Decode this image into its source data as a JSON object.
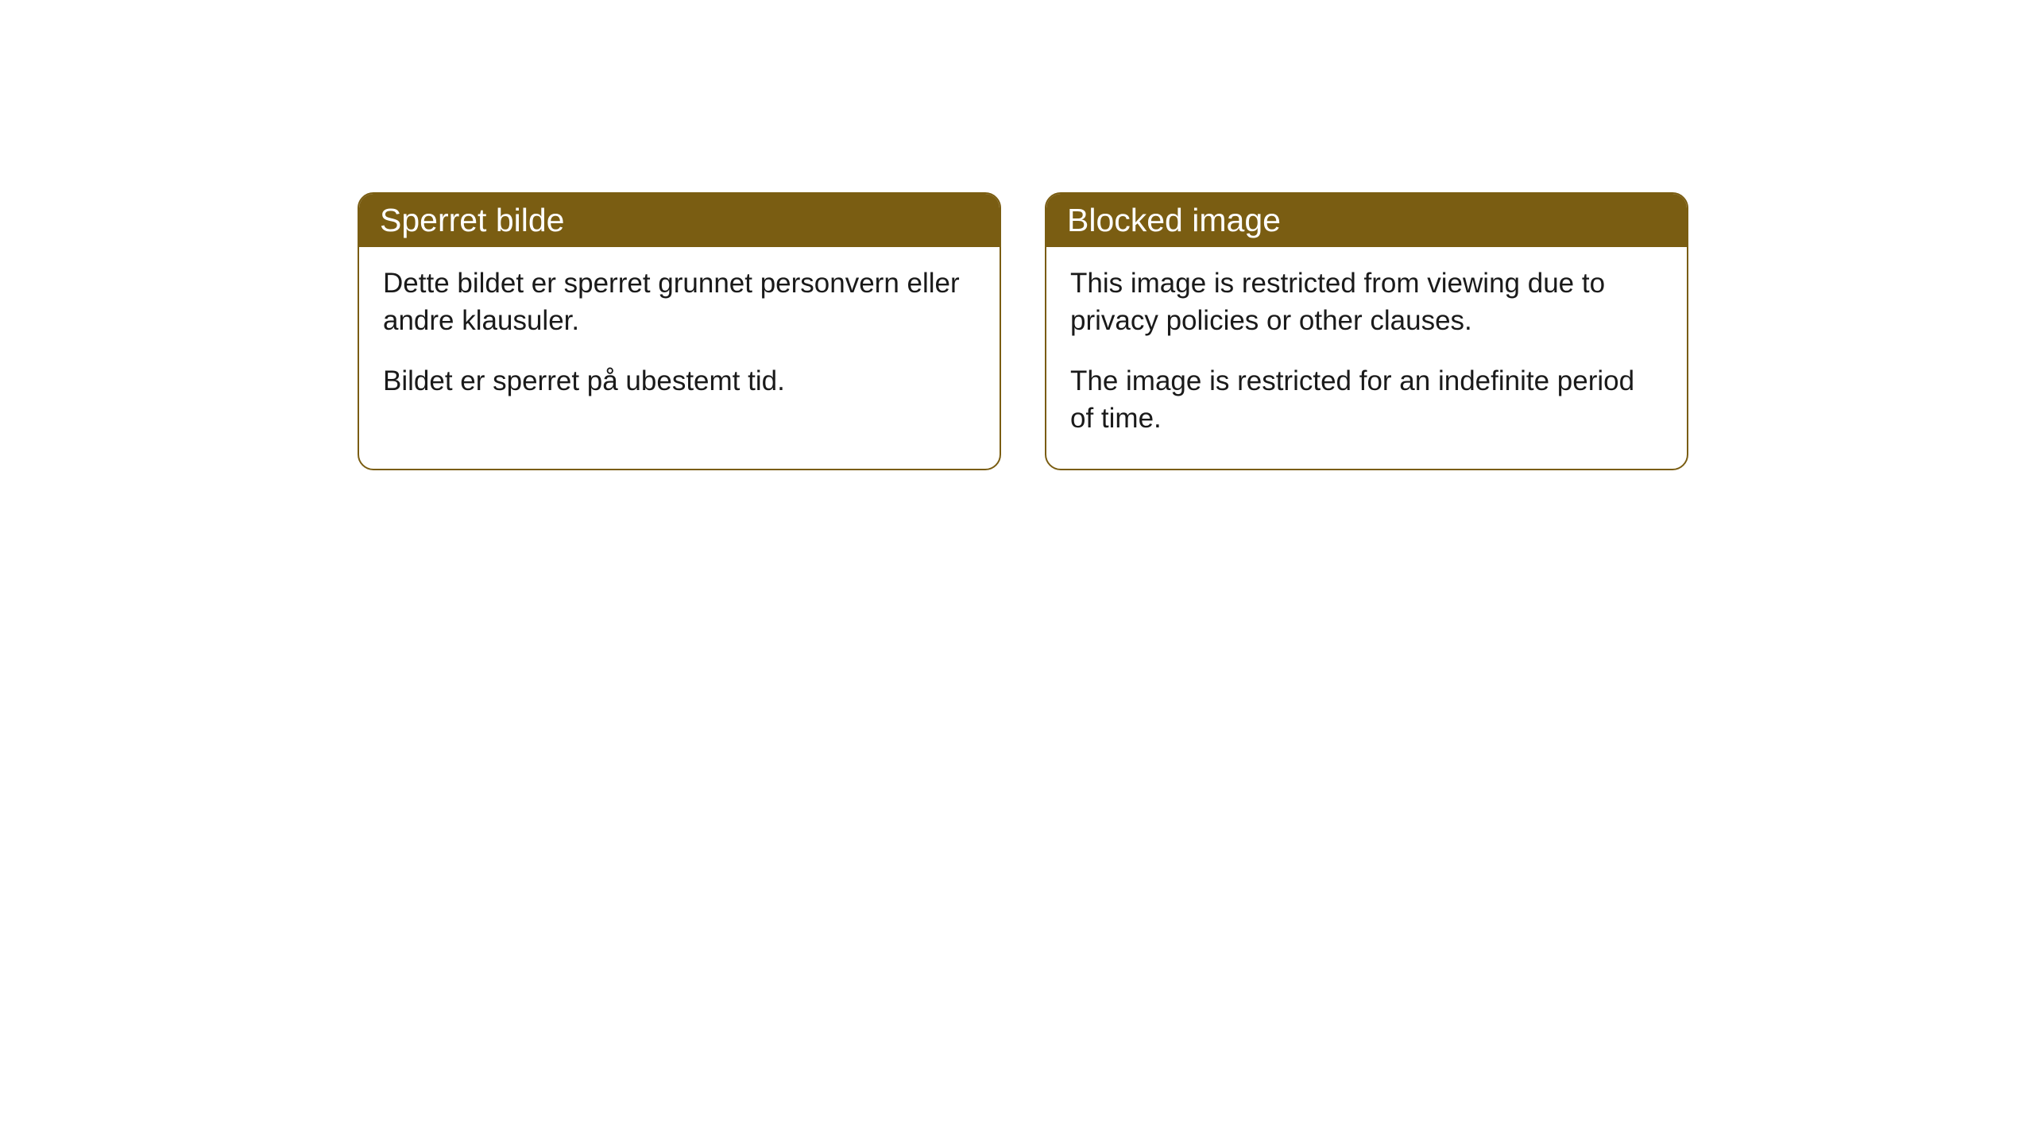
{
  "cards": [
    {
      "title": "Sperret bilde",
      "paragraph1": "Dette bildet er sperret grunnet personvern eller andre klausuler.",
      "paragraph2": "Bildet er sperret på ubestemt tid."
    },
    {
      "title": "Blocked image",
      "paragraph1": "This image is restricted from viewing due to privacy policies or other clauses.",
      "paragraph2": "The image is restricted for an indefinite period of time."
    }
  ],
  "styling": {
    "header_bg_color": "#7a5d12",
    "header_text_color": "#ffffff",
    "border_color": "#7a5d12",
    "body_bg_color": "#ffffff",
    "body_text_color": "#1a1a1a",
    "border_radius": 20,
    "header_fontsize": 41,
    "body_fontsize": 35
  }
}
